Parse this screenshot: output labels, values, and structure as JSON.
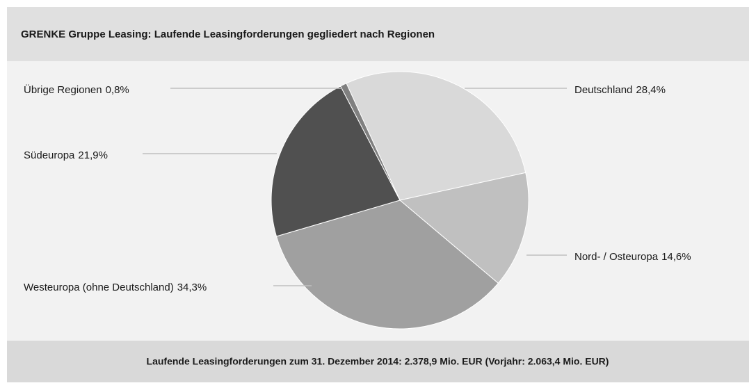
{
  "chart_data": {
    "type": "pie",
    "title": "GRENKE Gruppe Leasing: Laufende Leasingforderungen gegliedert nach Regionen",
    "categories": [
      "Deutschland",
      "Nord- / Osteuropa",
      "Westeuropa (ohne Deutschland)",
      "Südeuropa",
      "Übrige Regionen"
    ],
    "values": [
      28.4,
      14.6,
      34.3,
      21.9,
      0.8
    ],
    "value_labels": [
      "28,4%",
      "14,6%",
      "34,3%",
      "21,9%",
      "0,8%"
    ],
    "colors": [
      "#d9d9d9",
      "#c0c0c0",
      "#a0a0a0",
      "#505050",
      "#808080"
    ],
    "footnote": "Laufende Leasingforderungen zum 31. Dezember 2014: 2.378,9 Mio. EUR (Vorjahr: 2.063,4 Mio. EUR)"
  }
}
